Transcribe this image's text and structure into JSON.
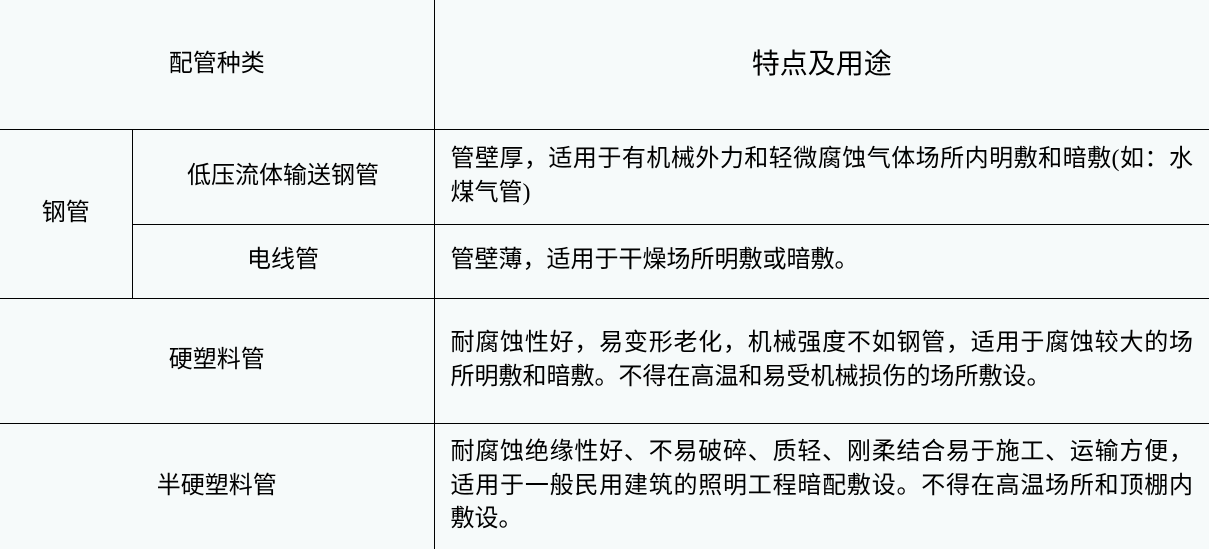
{
  "table": {
    "background_color": "#f6fafa",
    "border_color": "#000000",
    "font_family": "SimSun",
    "header": {
      "type_label": "配管种类",
      "desc_label": "特点及用途",
      "type_fontsize": 24,
      "desc_fontsize": 28
    },
    "columns": {
      "col1_width": 132,
      "col2_width": 302
    },
    "rows": [
      {
        "category_main": "钢管",
        "category_sub": "低压流体输送钢管",
        "description": "管壁厚，适用于有机械外力和轻微腐蚀气体场所内明敷和暗敷(如：水煤气管)",
        "rowspan_main": 2
      },
      {
        "category_sub": "电线管",
        "description": "管壁薄，适用于干燥场所明敷或暗敷。"
      },
      {
        "category_full": "硬塑料管",
        "description": "耐腐蚀性好，易变形老化，机械强度不如钢管，适用于腐蚀较大的场所明敷和暗敷。不得在高温和易受机械损伤的场所敷设。"
      },
      {
        "category_full": "半硬塑料管",
        "description": "耐腐蚀绝缘性好、不易破碎、质轻、刚柔结合易于施工、运输方便，适用于一般民用建筑的照明工程暗配敷设。不得在高温场所和顶棚内敷设。"
      }
    ],
    "cell_fontsize": 24
  }
}
